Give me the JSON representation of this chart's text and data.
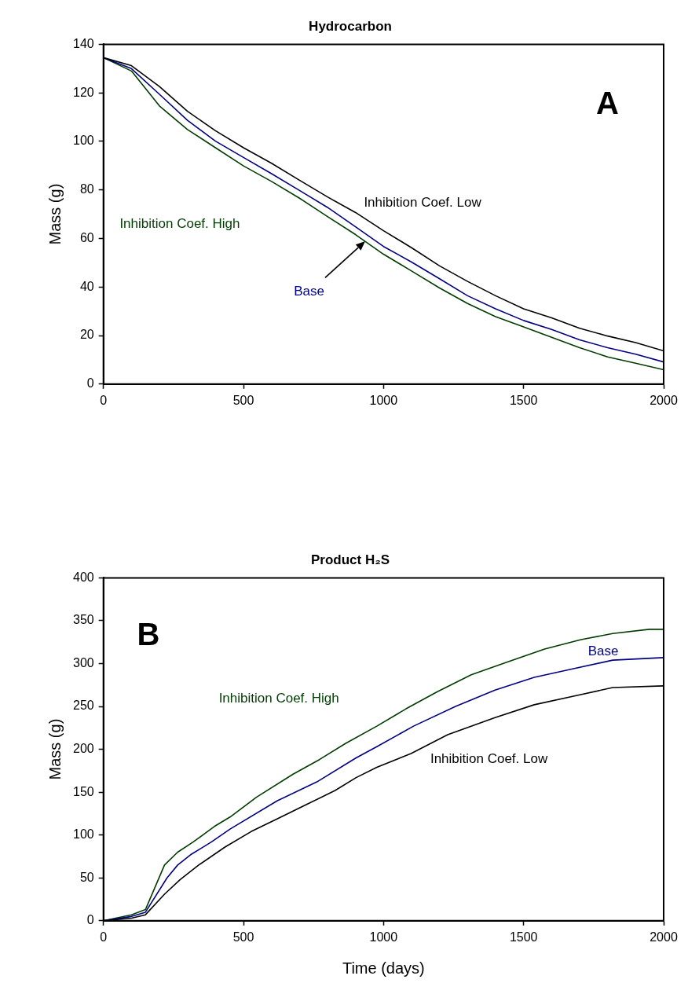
{
  "chart_data": [
    {
      "type": "line",
      "title": "Hydrocarbon",
      "ylabel": "Mass (g)",
      "xlim": [
        0,
        2000
      ],
      "xticks": [
        0,
        500,
        1000,
        1500,
        2000
      ],
      "ylim": [
        0,
        140
      ],
      "yticks": [
        0,
        20,
        40,
        60,
        80,
        100,
        120,
        140
      ],
      "annotations": [
        "A"
      ],
      "series": [
        {
          "name": "Inhibition Coef. Low",
          "color": "#000000",
          "x": [
            0,
            100,
            200,
            300,
            400,
            500,
            600,
            700,
            800,
            900,
            1000,
            1100,
            1200,
            1300,
            1400,
            1500,
            1600,
            1700,
            1800,
            1900,
            2000
          ],
          "values": [
            134.5,
            131.2,
            122.6,
            112.4,
            104.4,
            97.4,
            91,
            84,
            77.1,
            70.7,
            63.2,
            56.2,
            48.7,
            42.3,
            36.4,
            31,
            27.3,
            23,
            19.8,
            17.1,
            13.7
          ]
        },
        {
          "name": "Base",
          "color": "#000080",
          "x": [
            0,
            100,
            200,
            300,
            400,
            500,
            600,
            700,
            800,
            900,
            1000,
            1100,
            1200,
            1300,
            1400,
            1500,
            1600,
            1700,
            1800,
            1900,
            2000
          ],
          "values": [
            134.5,
            130,
            119.4,
            108.7,
            100.1,
            93.4,
            86.7,
            79.8,
            72.8,
            64.8,
            56.7,
            50.3,
            43.4,
            36.4,
            31,
            26.2,
            22.5,
            18.2,
            15,
            12.3,
            9.1
          ]
        },
        {
          "name": "Inhibition Coef. High",
          "color": "#003c00",
          "x": [
            0,
            100,
            200,
            300,
            400,
            500,
            600,
            700,
            800,
            900,
            1000,
            1100,
            1200,
            1300,
            1400,
            1500,
            1600,
            1700,
            1800,
            1900,
            2000
          ],
          "values": [
            134.5,
            129,
            114.6,
            104.9,
            97.4,
            89.9,
            83.5,
            76.6,
            69,
            61.6,
            53.5,
            46.6,
            39.6,
            33.2,
            27.8,
            23.6,
            19.3,
            15,
            11.2,
            8.6,
            5.9
          ]
        }
      ]
    },
    {
      "type": "line",
      "title": "Product H₂S",
      "xlabel": "Time (days)",
      "ylabel": "Mass (g)",
      "xlim": [
        0,
        2000
      ],
      "xticks": [
        0,
        500,
        1000,
        1500,
        2000
      ],
      "ylim": [
        0,
        400
      ],
      "yticks": [
        0,
        50,
        100,
        150,
        200,
        250,
        300,
        350,
        400
      ],
      "annotations": [
        "B"
      ],
      "series": [
        {
          "name": "Inhibition Coef. Low",
          "color": "#000000",
          "x": [
            0,
            100,
            150,
            218,
            274,
            340,
            434,
            527,
            621,
            734,
            827,
            902,
            976,
            1098,
            1229,
            1398,
            1538,
            1678,
            1818,
            2000
          ],
          "values": [
            0,
            3,
            7,
            31,
            48,
            65,
            86,
            104,
            119,
            137,
            152,
            167,
            179,
            195,
            217,
            237,
            252,
            262,
            272,
            274
          ]
        },
        {
          "name": "Base",
          "color": "#000080",
          "x": [
            0,
            100,
            150,
            227,
            265,
            311,
            386,
            452,
            621,
            762,
            902,
            976,
            1107,
            1257,
            1398,
            1538,
            1678,
            1818,
            2000
          ],
          "values": [
            0,
            5,
            10,
            50,
            65,
            77,
            92,
            107,
            140,
            162,
            190,
            203,
            227,
            250,
            269,
            284,
            294,
            304,
            307
          ]
        },
        {
          "name": "Inhibition Coef. High",
          "color": "#003c00",
          "x": [
            0,
            100,
            150,
            218,
            265,
            321,
            396,
            452,
            546,
            677,
            771,
            865,
            976,
            1079,
            1191,
            1313,
            1444,
            1575,
            1705,
            1818,
            1949,
            2000
          ],
          "values": [
            0,
            7,
            13,
            65,
            80,
            92,
            110,
            121,
            144,
            171,
            188,
            207,
            227,
            247,
            267,
            287,
            302,
            317,
            328,
            335,
            340,
            340
          ]
        }
      ]
    }
  ]
}
